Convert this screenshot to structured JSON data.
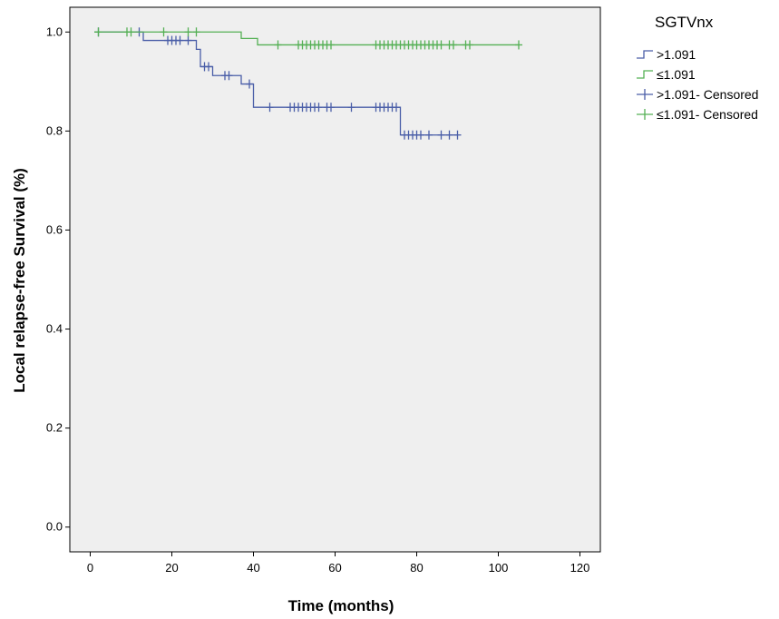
{
  "chart_data": {
    "type": "line",
    "subtype": "kaplan-meier-step",
    "title": "",
    "xlabel": "Time (months)",
    "ylabel": "Local relapse-free Survival (%)",
    "xlim": [
      -5,
      125
    ],
    "ylim": [
      -0.05,
      1.05
    ],
    "xticks": [
      0,
      20,
      40,
      60,
      80,
      100,
      120
    ],
    "yticks": [
      0.0,
      0.2,
      0.4,
      0.6,
      0.8,
      1.0
    ],
    "ytick_labels": [
      "0.0",
      "0.2",
      "0.4",
      "0.6",
      "0.8",
      "1.0"
    ],
    "grid": false,
    "background": "#efefef",
    "legend": {
      "title": "SGTVnx",
      "placement": "right",
      "entries": [
        ">1.091",
        "≤1.091",
        ">1.091- Censored",
        "≤1.091- Censored"
      ]
    },
    "series": [
      {
        "name": ">1.091",
        "color": "#4a5ea8",
        "steps": [
          [
            1,
            1.0
          ],
          [
            13,
            0.983
          ],
          [
            26,
            0.965
          ],
          [
            27,
            0.93
          ],
          [
            30,
            0.912
          ],
          [
            35,
            0.912
          ],
          [
            37,
            0.895
          ],
          [
            40,
            0.848
          ],
          [
            76,
            0.848
          ],
          [
            76,
            0.792
          ],
          [
            90,
            0.792
          ]
        ],
        "censored_x": [
          2,
          12,
          19,
          20,
          21,
          22,
          24,
          28,
          29,
          33,
          34,
          39,
          44,
          49,
          50,
          51,
          52,
          53,
          54,
          55,
          56,
          58,
          59,
          64,
          70,
          71,
          72,
          73,
          74,
          75,
          77,
          78,
          79,
          80,
          81,
          83,
          86,
          88,
          90
        ],
        "censored_y": [
          1.0,
          1.0,
          0.983,
          0.983,
          0.983,
          0.983,
          0.983,
          0.93,
          0.93,
          0.912,
          0.912,
          0.895,
          0.848,
          0.848,
          0.848,
          0.848,
          0.848,
          0.848,
          0.848,
          0.848,
          0.848,
          0.848,
          0.848,
          0.848,
          0.848,
          0.848,
          0.848,
          0.848,
          0.848,
          0.848,
          0.792,
          0.792,
          0.792,
          0.792,
          0.792,
          0.792,
          0.792,
          0.792,
          0.792
        ]
      },
      {
        "name": "≤1.091",
        "color": "#55b055",
        "steps": [
          [
            1,
            1.0
          ],
          [
            36,
            1.0
          ],
          [
            37,
            0.987
          ],
          [
            41,
            0.987
          ],
          [
            41,
            0.974
          ],
          [
            105,
            0.974
          ]
        ],
        "censored_x": [
          2,
          9,
          10,
          18,
          24,
          26,
          46,
          51,
          52,
          53,
          54,
          55,
          56,
          57,
          58,
          59,
          70,
          71,
          72,
          73,
          74,
          75,
          76,
          77,
          78,
          79,
          80,
          81,
          82,
          83,
          84,
          85,
          86,
          88,
          89,
          92,
          93,
          105
        ],
        "censored_y": [
          1.0,
          1.0,
          1.0,
          1.0,
          1.0,
          1.0,
          0.974,
          0.974,
          0.974,
          0.974,
          0.974,
          0.974,
          0.974,
          0.974,
          0.974,
          0.974,
          0.974,
          0.974,
          0.974,
          0.974,
          0.974,
          0.974,
          0.974,
          0.974,
          0.974,
          0.974,
          0.974,
          0.974,
          0.974,
          0.974,
          0.974,
          0.974,
          0.974,
          0.974,
          0.974,
          0.974,
          0.974,
          0.974
        ]
      }
    ]
  }
}
